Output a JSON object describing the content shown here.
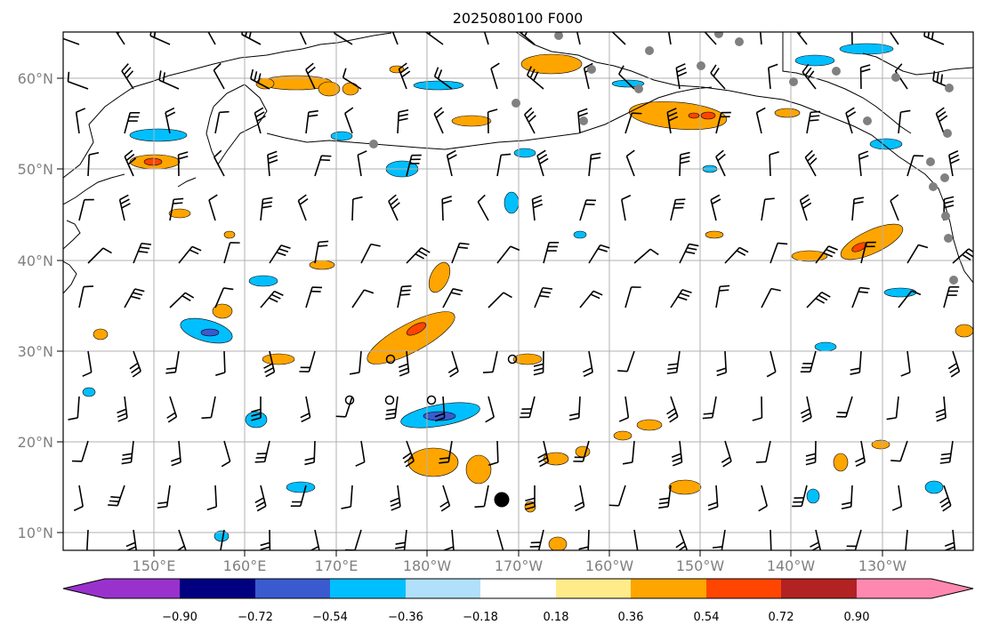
{
  "title": "2025080100 F000",
  "lat_labels": [
    "60°N",
    "50°N",
    "40°N",
    "30°N",
    "20°N",
    "10°N"
  ],
  "lon_labels": [
    "150°E",
    "160°E",
    "170°E",
    "180°W",
    "170°W",
    "160°W",
    "150°W",
    "140°W",
    "130°W"
  ],
  "colorbar": {
    "levels": [
      "−0.90",
      "−0.72",
      "−0.54",
      "−0.36",
      "−0.18",
      "0.18",
      "0.36",
      "0.54",
      "0.72",
      "0.90"
    ],
    "colors": [
      "#9932cc",
      "#000080",
      "#3a5bd0",
      "#00bfff",
      "#b0e0fa",
      "#ffffff",
      "#ffeb8a",
      "#ffa500",
      "#ff4500",
      "#b22222",
      "#ff88b0"
    ]
  },
  "fill_colors": {
    "neg1": "#00bfff",
    "neg2": "#3a5bd0",
    "pos1": "#ffa500",
    "pos2": "#ff4500"
  }
}
